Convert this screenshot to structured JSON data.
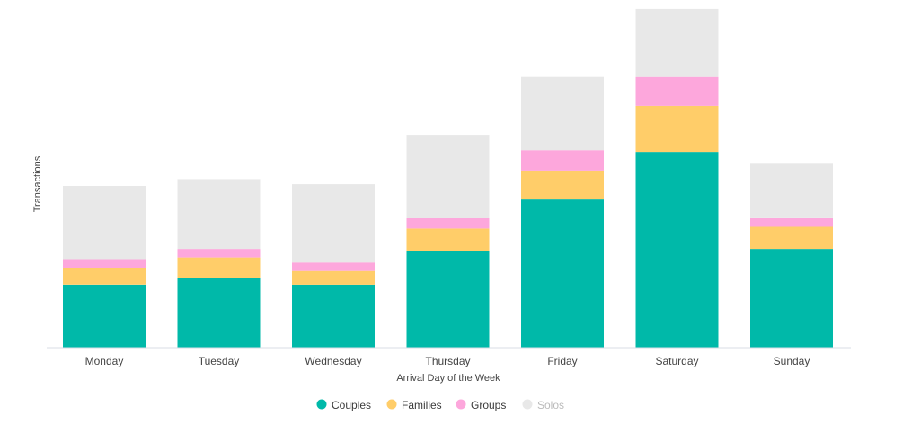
{
  "chart_data": {
    "type": "bar",
    "stacked": true,
    "title": "",
    "xlabel": "Arrival Day of the Week",
    "ylabel": "Transactions",
    "ylim": [
      0,
      100
    ],
    "grid": false,
    "legend_position": "bottom-center",
    "categories": [
      "Monday",
      "Tuesday",
      "Wednesday",
      "Thursday",
      "Friday",
      "Saturday",
      "Sunday"
    ],
    "series": [
      {
        "name": "Couples",
        "color": "#00b9a9",
        "active": true,
        "values": [
          18.5,
          20.5,
          18.5,
          28.5,
          43.5,
          57.5,
          29
        ]
      },
      {
        "name": "Families",
        "color": "#ffcd69",
        "active": true,
        "values": [
          5,
          6,
          4,
          6.5,
          8.5,
          13.5,
          6.5
        ]
      },
      {
        "name": "Groups",
        "color": "#fda7dc",
        "active": true,
        "values": [
          2.5,
          2.5,
          2.5,
          3,
          6,
          8.5,
          2.5
        ]
      },
      {
        "name": "Solos",
        "color": "#e8e8e8",
        "active": false,
        "values": [
          21.5,
          20.5,
          23,
          24.5,
          21.5,
          20,
          16
        ]
      }
    ],
    "axis_color": "#d8dde6",
    "inactive_legend_color": "#bbbbbb"
  }
}
